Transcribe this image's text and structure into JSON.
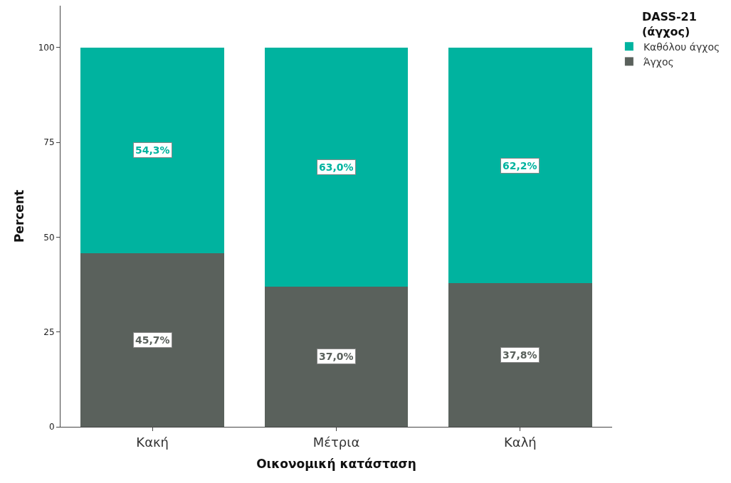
{
  "chart_data": {
    "type": "bar",
    "stacked": true,
    "xlabel": "Οικονομική κατάσταση",
    "ylabel": "Percent",
    "legend_title": "DASS-21\n(άγχος)",
    "legend": "top right",
    "categories": [
      "Κακή",
      "Μέτρια",
      "Καλή"
    ],
    "ylim": [
      0,
      111
    ],
    "yticks": [
      0,
      25,
      50,
      75,
      100
    ],
    "series": [
      {
        "name": "Άγχος",
        "color": "#5a615c",
        "values": [
          45.7,
          37.0,
          37.8
        ],
        "value_labels": [
          "45,7%",
          "37,0%",
          "37,8%"
        ]
      },
      {
        "name": "Καθόλου άγχος",
        "color": "#00b39f",
        "values": [
          54.3,
          63.0,
          62.2
        ],
        "value_labels": [
          "54,3%",
          "63,0%",
          "62,2%"
        ]
      }
    ]
  }
}
